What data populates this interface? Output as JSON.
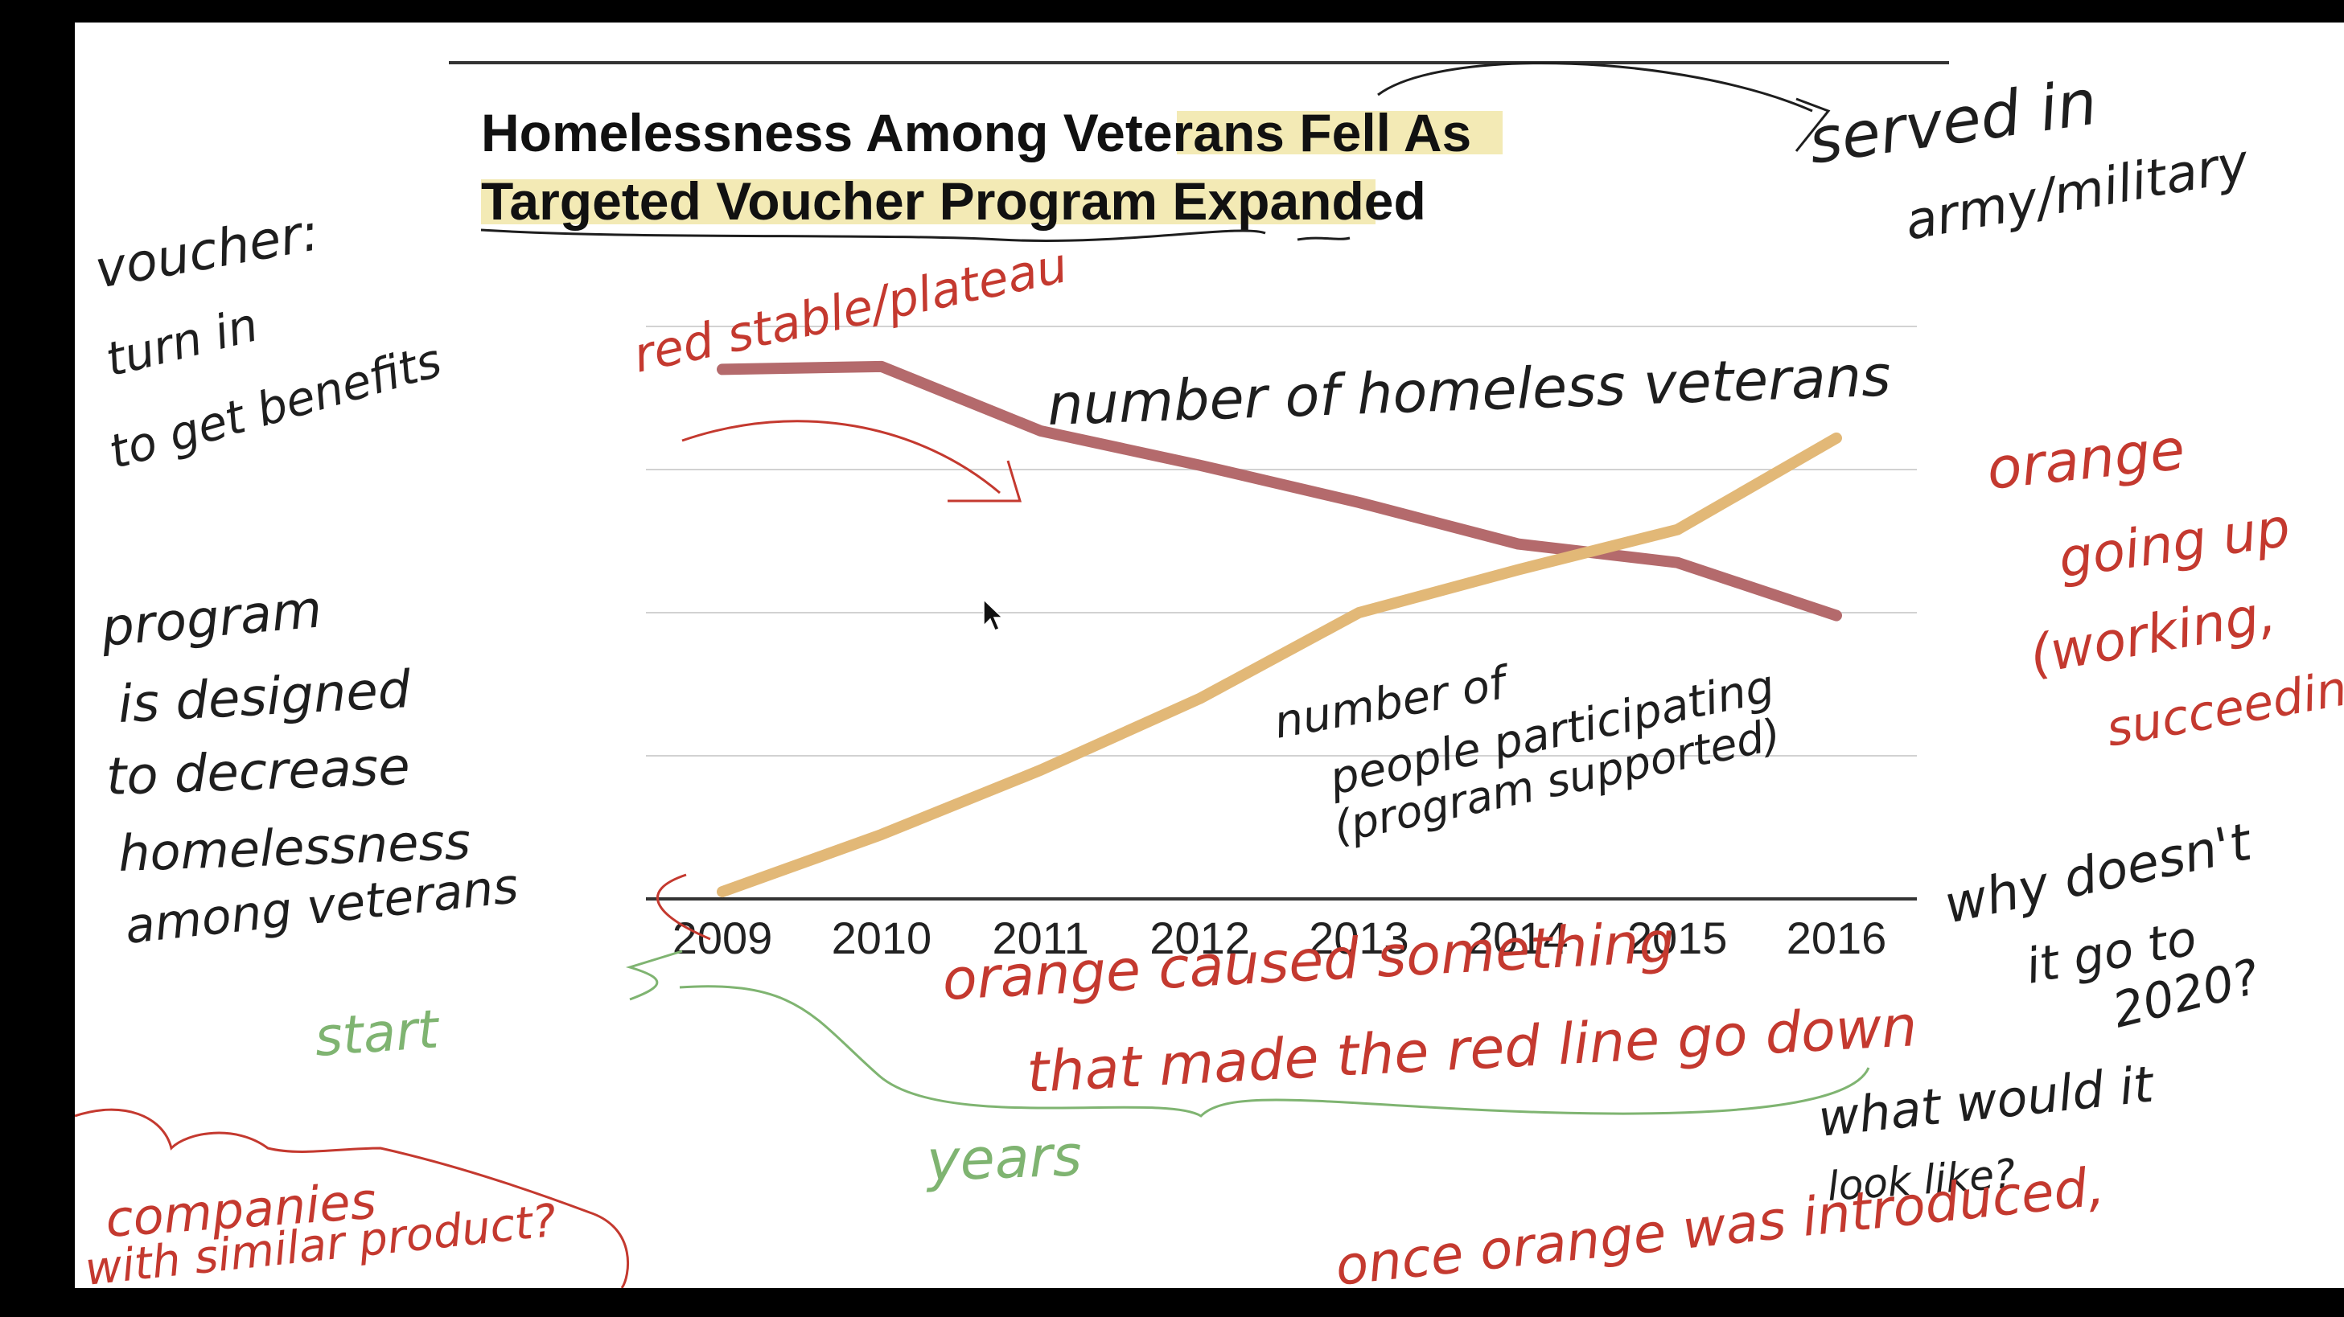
{
  "colors": {
    "background": "#000000",
    "canvas": "#ffffff",
    "series_homeless": "#b46a6c",
    "series_voucher": "#e2b877",
    "title_highlight": "#f3eab5",
    "ink_black": "#1e1e1e",
    "ink_red": "#c4392f",
    "ink_green": "#7fb471",
    "grid": "#d2d2d2",
    "axis": "#333333"
  },
  "chart_data": {
    "type": "line",
    "title": "Homelessness Among Veterans Fell As Targeted Voucher Program Expanded",
    "title_lines": [
      "Homelessness Among Veterans Fell As",
      "Targeted Voucher Program Expanded"
    ],
    "x": [
      2009,
      2010,
      2011,
      2012,
      2013,
      2014,
      2015,
      2016
    ],
    "x_tick_labels": [
      "2009",
      "2010",
      "2011",
      "2012",
      "2013",
      "2014",
      "2015",
      "2016"
    ],
    "series": [
      {
        "values": [
          3.7,
          3.72,
          3.27,
          3.03,
          2.77,
          2.48,
          2.35,
          1.98
        ],
        "color": "#b46a6c"
      },
      {
        "values": [
          0.05,
          0.45,
          0.9,
          1.4,
          2.0,
          2.3,
          2.58,
          3.22
        ],
        "color": "#e2b877"
      }
    ],
    "ylim": [
      0,
      4
    ],
    "grid": true,
    "xlabel": "",
    "ylabel": ""
  },
  "annotations": {
    "served_in": "served in",
    "army_military": "army/military",
    "voucher_1": "voucher:",
    "voucher_2": "turn in",
    "voucher_3": "to get benefits",
    "red_stable": "red stable/plateau",
    "number_homeless": "number of homeless veterans",
    "orange_going_up_1": "orange",
    "orange_going_up_2": "going up",
    "orange_going_up_3": "(working,",
    "orange_going_up_4": "succeeding",
    "program_1": "program",
    "program_2": "is designed",
    "program_3": "to decrease",
    "program_4": "homelessness",
    "program_5": "among veterans",
    "participating_1": "number of",
    "participating_2": "people participating",
    "participating_3": "(program supported)",
    "start": "start",
    "orange_caused_1": "orange caused something",
    "orange_caused_2": "that made the red line go down",
    "years": "years",
    "why_1": "why doesn't",
    "why_2": "it go to",
    "why_3": "2020?",
    "why_4": "what would it",
    "why_5": "look like?",
    "companies_1": "companies",
    "companies_2": "with similar product?",
    "once_orange": "once orange was introduced,"
  }
}
